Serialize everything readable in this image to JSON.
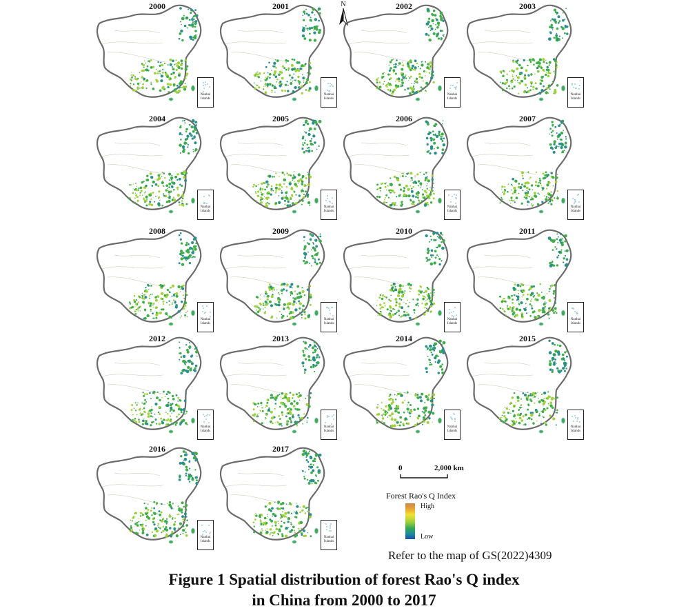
{
  "figure": {
    "caption_line1": "Figure 1  Spatial distribution of forest Rao's Q index",
    "caption_line2": "in China from 2000 to 2017",
    "reference_note": "Refer to the map of GS(2022)4309"
  },
  "maps": [
    {
      "year": "2000"
    },
    {
      "year": "2001"
    },
    {
      "year": "2002"
    },
    {
      "year": "2003"
    },
    {
      "year": "2004"
    },
    {
      "year": "2005"
    },
    {
      "year": "2006"
    },
    {
      "year": "2007"
    },
    {
      "year": "2008"
    },
    {
      "year": "2009"
    },
    {
      "year": "2010"
    },
    {
      "year": "2011"
    },
    {
      "year": "2012"
    },
    {
      "year": "2013"
    },
    {
      "year": "2014"
    },
    {
      "year": "2015"
    },
    {
      "year": "2016"
    },
    {
      "year": "2017"
    }
  ],
  "inset_label_line1": "Nanhai",
  "inset_label_line2": "Islands",
  "north_arrow_label": "N",
  "scale_bar": {
    "start_label": "0",
    "end_label": "2,000 km"
  },
  "legend": {
    "title": "Forest Rao's Q Index",
    "high_label": "High",
    "low_label": "Low",
    "colors": [
      "#c9874e",
      "#e8a234",
      "#f2e232",
      "#9fd13a",
      "#32a852",
      "#1c8ca0",
      "#1c4fa0"
    ]
  },
  "colors": {
    "outline": "#6b6b6b",
    "forest_green": "#3fae49",
    "forest_yellowgreen": "#9fd13a",
    "forest_teal": "#2b8f8a",
    "water_blue": "#9ccbe6"
  }
}
